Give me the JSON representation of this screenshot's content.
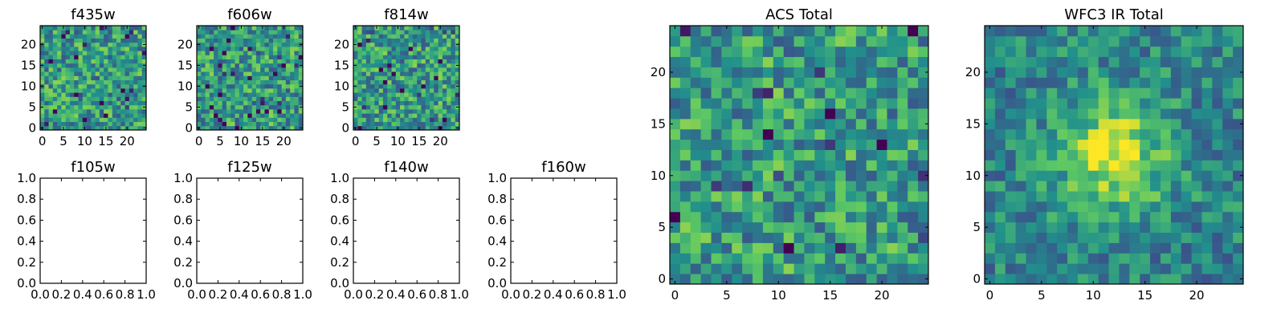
{
  "chart_data": [
    {
      "type": "heatmap",
      "title": "f435w",
      "grid_size": 25,
      "xlim": [
        -0.5,
        24.5
      ],
      "ylim": [
        -0.5,
        24.5
      ],
      "xticks": [
        0,
        5,
        10,
        15,
        20
      ],
      "yticks": [
        0,
        5,
        10,
        15,
        20
      ],
      "colormap": "viridis",
      "seed": 11,
      "pattern": "noise",
      "grid": false
    },
    {
      "type": "heatmap",
      "title": "f606w",
      "grid_size": 25,
      "xlim": [
        -0.5,
        24.5
      ],
      "ylim": [
        -0.5,
        24.5
      ],
      "xticks": [
        0,
        5,
        10,
        15,
        20
      ],
      "yticks": [
        0,
        5,
        10,
        15,
        20
      ],
      "colormap": "viridis",
      "seed": 23,
      "pattern": "noise",
      "grid": false
    },
    {
      "type": "heatmap",
      "title": "f814w",
      "grid_size": 25,
      "xlim": [
        -0.5,
        24.5
      ],
      "ylim": [
        -0.5,
        24.5
      ],
      "xticks": [
        0,
        5,
        10,
        15,
        20
      ],
      "yticks": [
        0,
        5,
        10,
        15,
        20
      ],
      "colormap": "viridis",
      "seed": 37,
      "pattern": "noise",
      "grid": false
    },
    {
      "type": "empty",
      "title": "f105w",
      "xlim": [
        0,
        1
      ],
      "ylim": [
        0,
        1
      ],
      "xticks": [
        "0.0",
        "0.2",
        "0.4",
        "0.6",
        "0.8",
        "1.0"
      ],
      "yticks": [
        "0.0",
        "0.2",
        "0.4",
        "0.6",
        "0.8",
        "1.0"
      ]
    },
    {
      "type": "empty",
      "title": "f125w",
      "xlim": [
        0,
        1
      ],
      "ylim": [
        0,
        1
      ],
      "xticks": [
        "0.0",
        "0.2",
        "0.4",
        "0.6",
        "0.8",
        "1.0"
      ],
      "yticks": [
        "0.0",
        "0.2",
        "0.4",
        "0.6",
        "0.8",
        "1.0"
      ]
    },
    {
      "type": "empty",
      "title": "f140w",
      "xlim": [
        0,
        1
      ],
      "ylim": [
        0,
        1
      ],
      "xticks": [
        "0.0",
        "0.2",
        "0.4",
        "0.6",
        "0.8",
        "1.0"
      ],
      "yticks": [
        "0.0",
        "0.2",
        "0.4",
        "0.6",
        "0.8",
        "1.0"
      ]
    },
    {
      "type": "empty",
      "title": "f160w",
      "xlim": [
        0,
        1
      ],
      "ylim": [
        0,
        1
      ],
      "xticks": [
        "0.0",
        "0.2",
        "0.4",
        "0.6",
        "0.8",
        "1.0"
      ],
      "yticks": [
        "0.0",
        "0.2",
        "0.4",
        "0.6",
        "0.8",
        "1.0"
      ]
    },
    {
      "type": "heatmap",
      "title": "ACS Total",
      "grid_size": 25,
      "xlim": [
        -0.5,
        24.5
      ],
      "ylim": [
        -0.5,
        24.5
      ],
      "xticks": [
        0,
        5,
        10,
        15,
        20
      ],
      "yticks": [
        0,
        5,
        10,
        15,
        20
      ],
      "colormap": "viridis",
      "seed": 53,
      "pattern": "noise",
      "grid": false
    },
    {
      "type": "heatmap",
      "title": "WFC3 IR Total",
      "grid_size": 25,
      "xlim": [
        -0.5,
        24.5
      ],
      "ylim": [
        -0.5,
        24.5
      ],
      "xticks": [
        0,
        5,
        10,
        15,
        20
      ],
      "yticks": [
        0,
        5,
        10,
        15,
        20
      ],
      "colormap": "viridis",
      "seed": 71,
      "pattern": "central_source",
      "source_center": [
        12,
        12
      ],
      "grid": false
    }
  ],
  "colors": {
    "background": "#ffffff",
    "axes": "#000000",
    "viridis_stops": [
      "#440154",
      "#3b528b",
      "#21908c",
      "#5dc863",
      "#fde725"
    ]
  }
}
